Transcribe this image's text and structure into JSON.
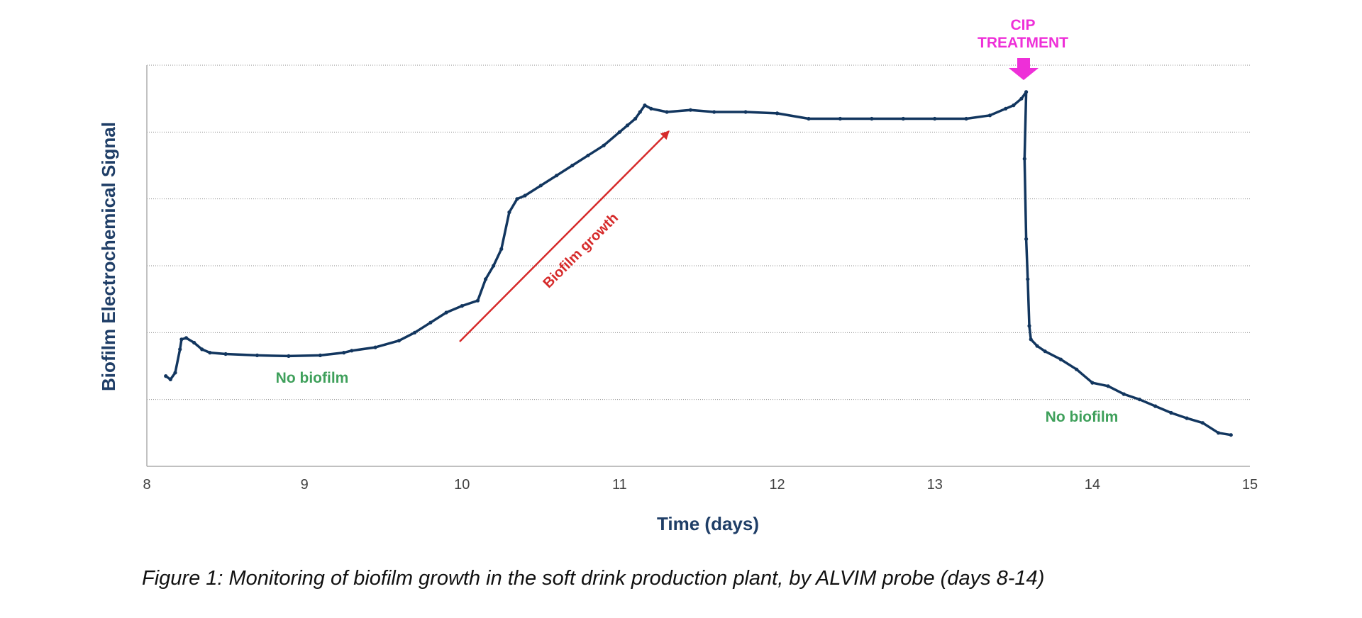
{
  "chart_data": {
    "type": "line",
    "title": "",
    "xlabel": "Time (days)",
    "ylabel": "Biofilm Electrochemical Signal",
    "xlim": [
      8,
      15
    ],
    "ylim": [
      0,
      6
    ],
    "x_ticks": [
      "8",
      "9",
      "10",
      "11",
      "12",
      "13",
      "14",
      "15"
    ],
    "y_tick_labels_shown": false,
    "grid": "horizontal dotted",
    "legend": "none",
    "series_color": "#12365f",
    "series": [
      {
        "x": [
          8.12,
          8.15,
          8.18,
          8.21,
          8.22,
          8.25,
          8.3,
          8.35,
          8.4,
          8.5,
          8.7,
          8.9,
          9.1,
          9.25,
          9.3,
          9.45,
          9.6,
          9.7,
          9.8,
          9.9,
          10.0,
          10.1,
          10.15,
          10.2,
          10.25,
          10.3,
          10.35,
          10.4,
          10.5,
          10.6,
          10.7,
          10.8,
          10.9,
          11.0,
          11.05,
          11.1,
          11.13,
          11.16,
          11.2,
          11.3,
          11.45,
          11.6,
          11.8,
          12.0,
          12.2,
          12.4,
          12.6,
          12.8,
          13.0,
          13.2,
          13.35,
          13.45,
          13.5,
          13.55,
          13.58,
          13.57,
          13.58,
          13.59,
          13.6,
          13.61,
          13.65,
          13.7,
          13.8,
          13.9,
          14.0,
          14.1,
          14.2,
          14.3,
          14.4,
          14.5,
          14.6,
          14.7,
          14.8,
          14.88
        ],
        "y": [
          1.35,
          1.3,
          1.4,
          1.75,
          1.9,
          1.92,
          1.85,
          1.75,
          1.7,
          1.68,
          1.66,
          1.65,
          1.66,
          1.7,
          1.73,
          1.78,
          1.88,
          2.0,
          2.15,
          2.3,
          2.4,
          2.48,
          2.8,
          3.0,
          3.25,
          3.8,
          4.0,
          4.05,
          4.2,
          4.35,
          4.5,
          4.65,
          4.8,
          5.0,
          5.1,
          5.2,
          5.3,
          5.4,
          5.35,
          5.3,
          5.33,
          5.3,
          5.3,
          5.28,
          5.2,
          5.2,
          5.2,
          5.2,
          5.2,
          5.2,
          5.25,
          5.35,
          5.4,
          5.5,
          5.6,
          4.6,
          3.4,
          2.8,
          2.1,
          1.9,
          1.8,
          1.72,
          1.6,
          1.45,
          1.25,
          1.2,
          1.08,
          1.0,
          0.9,
          0.8,
          0.72,
          0.65,
          0.5,
          0.47
        ]
      }
    ],
    "annotations": {
      "no_biofilm_left": "No biofilm",
      "no_biofilm_right": "No biofilm",
      "growth_label": "Biofilm growth",
      "cip_line1": "CIP",
      "cip_line2": "TREATMENT"
    },
    "colors": {
      "green_annotation": "#3fa05b",
      "red_annotation": "#d62a2a",
      "magenta_annotation": "#ee2fd8",
      "axis_title": "#1f3e67"
    }
  },
  "caption": "Figure 1: Monitoring of biofilm growth in the soft drink production plant, by ALVIM probe (days 8-14)"
}
